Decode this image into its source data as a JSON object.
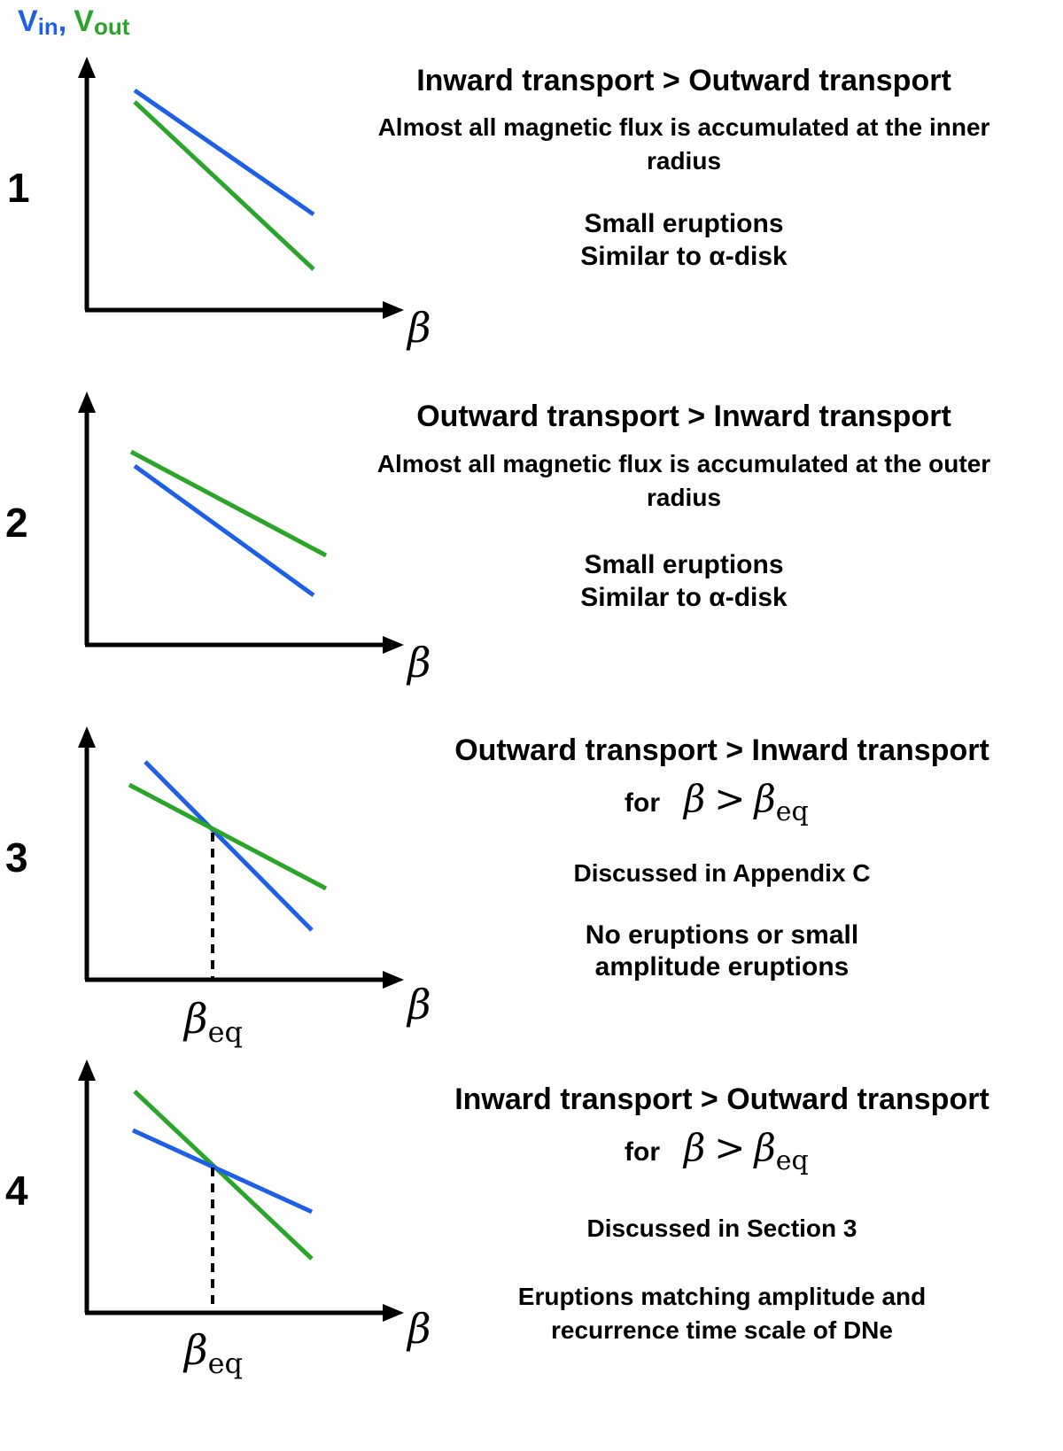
{
  "header": {
    "vin_main": "V",
    "vin_sub": "in",
    "comma": ",",
    "vout_main": "V",
    "vout_sub": "out",
    "vin_color": "#1f5fe8",
    "vout_color": "#2aa52a"
  },
  "axis_symbol": "β",
  "beta_eq": {
    "main": "β",
    "sub": "eq"
  },
  "condition": {
    "for": "for",
    "gt": ">"
  },
  "colors": {
    "vin": "#1f5fe8",
    "vout": "#2aa52a",
    "axis": "#000000"
  },
  "panels": [
    {
      "number": "1",
      "title": "Inward transport > Outward transport",
      "has_condition": false,
      "lines": [
        "Almost all magnetic flux is accumulated at the inner",
        "radius",
        "",
        "Small eruptions",
        "Similar to α-disk"
      ],
      "crossing": false
    },
    {
      "number": "2",
      "title": "Outward transport > Inward transport",
      "has_condition": false,
      "lines": [
        "Almost all magnetic flux is accumulated at the outer",
        "radius",
        "",
        "Small eruptions",
        "Similar to α-disk"
      ],
      "crossing": false
    },
    {
      "number": "3",
      "title": "Outward transport > Inward transport",
      "has_condition": true,
      "lines": [
        "Discussed in Appendix C",
        "",
        "No eruptions or small",
        "amplitude eruptions"
      ],
      "crossing": true
    },
    {
      "number": "4",
      "title": "Inward transport > Outward transport",
      "has_condition": true,
      "lines": [
        "Discussed in Section 3",
        "",
        "Eruptions matching amplitude and",
        "recurrence time scale of DNe"
      ],
      "crossing": true
    }
  ]
}
